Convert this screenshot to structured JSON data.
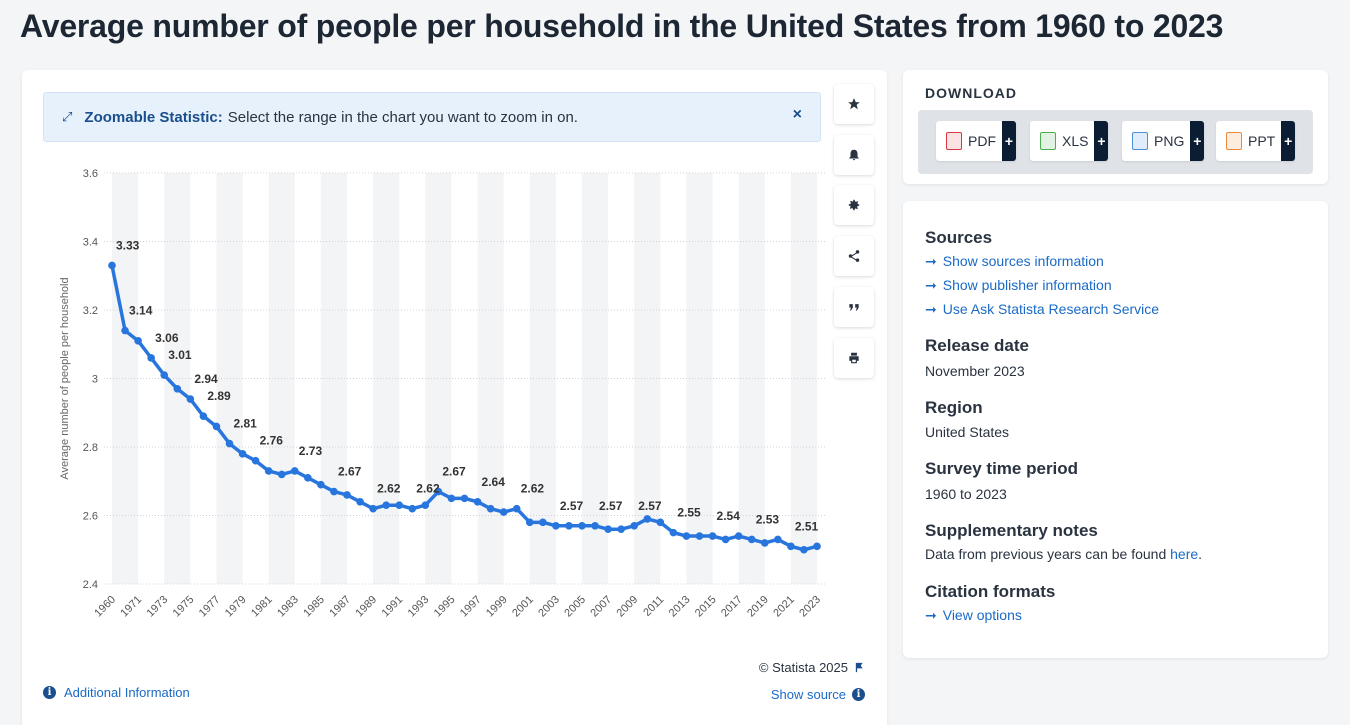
{
  "page": {
    "title": "Average number of people per household in the United States from 1960 to 2023"
  },
  "zoom_banner": {
    "label": "Zoomable Statistic:",
    "text": "Select the range in the chart you want to zoom in on.",
    "close": "×"
  },
  "chart_footer": {
    "copyright": "© Statista 2025",
    "additional_info": "Additional Information",
    "show_source": "Show source"
  },
  "download": {
    "title": "DOWNLOAD",
    "buttons": [
      {
        "label": "PDF",
        "plus": "+",
        "color": "#d9363e"
      },
      {
        "label": "XLS",
        "plus": "+",
        "color": "#4caf50"
      },
      {
        "label": "PNG",
        "plus": "+",
        "color": "#4a90d9"
      },
      {
        "label": "PPT",
        "plus": "+",
        "color": "#f0883e"
      }
    ]
  },
  "info": {
    "sources_title": "Sources",
    "sources_links": [
      "Show sources information",
      "Show publisher information",
      "Use Ask Statista Research Service"
    ],
    "release_title": "Release date",
    "release_value": "November 2023",
    "region_title": "Region",
    "region_value": "United States",
    "period_title": "Survey time period",
    "period_value": "1960 to 2023",
    "notes_title": "Supplementary notes",
    "notes_text": "Data from previous years can be found",
    "notes_link": "here",
    "citation_title": "Citation formats",
    "citation_link": "View options"
  },
  "colors": {
    "line": "#2876dd",
    "accent": "#1a4e8c",
    "link": "#1a6ac7"
  },
  "chart_data": {
    "type": "line",
    "title": "Average number of people per household in the United States from 1960 to 2023",
    "ylabel": "Average number of people per household",
    "xlabel": "",
    "ylim": [
      2.4,
      3.6
    ],
    "yticks": [
      2.4,
      2.6,
      2.8,
      3,
      3.2,
      3.4,
      3.6
    ],
    "x": [
      "1960",
      "1970",
      "1971",
      "1972",
      "1973",
      "1974",
      "1975",
      "1976",
      "1977",
      "1978",
      "1979",
      "1980",
      "1981",
      "1982",
      "1983",
      "1984",
      "1985",
      "1986",
      "1987",
      "1988",
      "1989",
      "1990",
      "1991",
      "1992",
      "1993",
      "1994",
      "1995",
      "1996",
      "1997",
      "1998",
      "1999",
      "2000",
      "2001",
      "2002",
      "2003",
      "2004",
      "2005",
      "2006",
      "2007",
      "2008",
      "2009",
      "2010",
      "2011",
      "2012",
      "2013",
      "2014",
      "2015",
      "2016",
      "2017",
      "2018",
      "2019",
      "2020",
      "2021",
      "2022",
      "2023"
    ],
    "xtick_labels": [
      "1960",
      "1971",
      "1973",
      "1975",
      "1977",
      "1979",
      "1981",
      "1983",
      "1985",
      "1987",
      "1989",
      "1991",
      "1993",
      "1995",
      "1997",
      "1999",
      "2001",
      "2003",
      "2005",
      "2007",
      "2009",
      "2011",
      "2013",
      "2015",
      "2017",
      "2019",
      "2021",
      "2023"
    ],
    "series": [
      {
        "name": "Average number of people per household",
        "values": [
          3.33,
          3.14,
          3.11,
          3.06,
          3.01,
          2.97,
          2.94,
          2.89,
          2.86,
          2.81,
          2.78,
          2.76,
          2.73,
          2.72,
          2.73,
          2.71,
          2.69,
          2.67,
          2.66,
          2.64,
          2.62,
          2.63,
          2.63,
          2.62,
          2.63,
          2.67,
          2.65,
          2.65,
          2.64,
          2.62,
          2.61,
          2.62,
          2.58,
          2.58,
          2.57,
          2.57,
          2.57,
          2.57,
          2.56,
          2.56,
          2.57,
          2.59,
          2.58,
          2.55,
          2.54,
          2.54,
          2.54,
          2.53,
          2.54,
          2.53,
          2.52,
          2.53,
          2.51,
          2.5,
          2.51
        ]
      }
    ],
    "data_labels": [
      {
        "x": "1960",
        "text": "3.33"
      },
      {
        "x": "1970",
        "text": "3.14"
      },
      {
        "x": "1972",
        "text": "3.06"
      },
      {
        "x": "1973",
        "text": "3.01"
      },
      {
        "x": "1975",
        "text": "2.94"
      },
      {
        "x": "1976",
        "text": "2.89"
      },
      {
        "x": "1978",
        "text": "2.81"
      },
      {
        "x": "1980",
        "text": "2.76"
      },
      {
        "x": "1983",
        "text": "2.73"
      },
      {
        "x": "1986",
        "text": "2.67"
      },
      {
        "x": "1989",
        "text": "2.62"
      },
      {
        "x": "1992",
        "text": "2.62"
      },
      {
        "x": "1994",
        "text": "2.67"
      },
      {
        "x": "1997",
        "text": "2.64"
      },
      {
        "x": "2000",
        "text": "2.62"
      },
      {
        "x": "2003",
        "text": "2.57"
      },
      {
        "x": "2006",
        "text": "2.57"
      },
      {
        "x": "2009",
        "text": "2.57"
      },
      {
        "x": "2012",
        "text": "2.55"
      },
      {
        "x": "2015",
        "text": "2.54"
      },
      {
        "x": "2018",
        "text": "2.53"
      },
      {
        "x": "2021",
        "text": "2.51"
      }
    ],
    "grid": true,
    "legend": "none"
  }
}
